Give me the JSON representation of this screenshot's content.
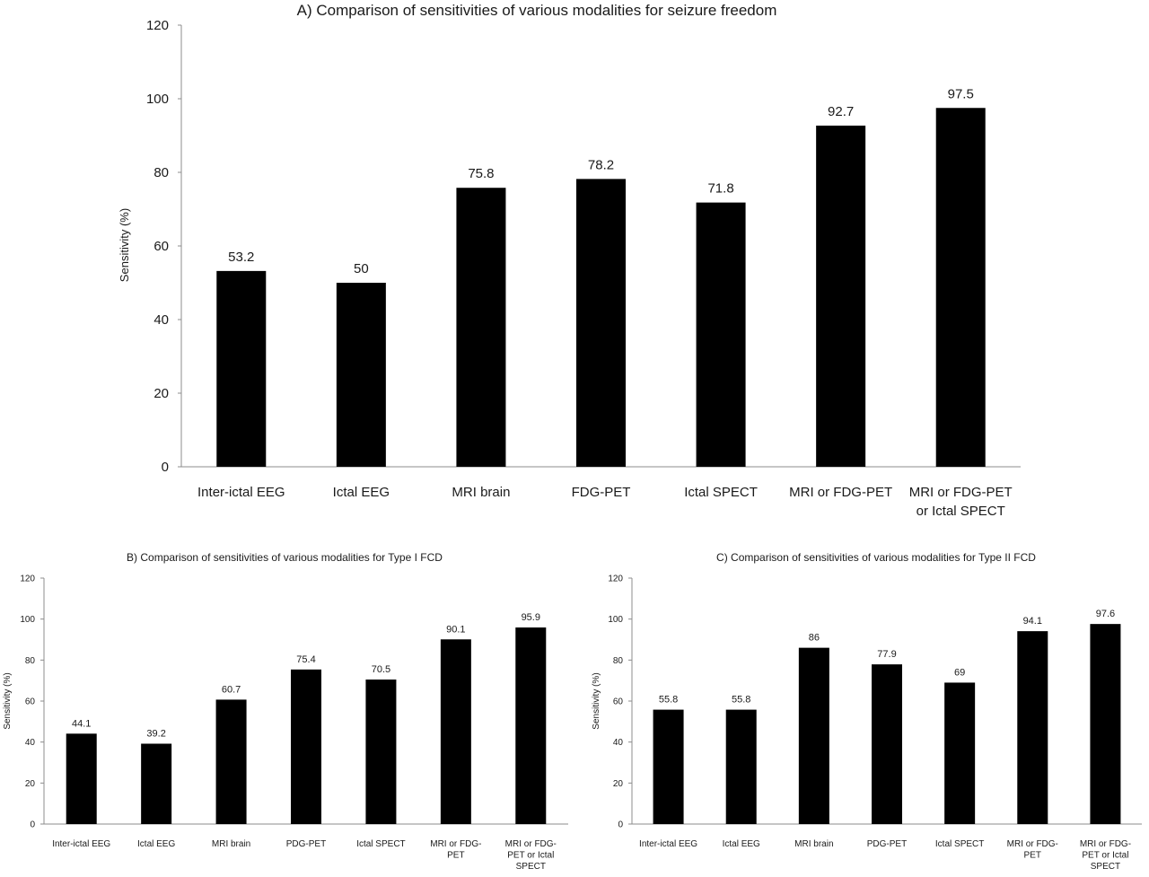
{
  "chart_data": [
    {
      "id": "A",
      "type": "bar",
      "title": "A) Comparison of sensitivities of various modalities for  seizure freedom",
      "xlabel": "",
      "ylabel": "Sensitivity (%)",
      "ylim": [
        0,
        120
      ],
      "yticks": [
        0,
        20,
        40,
        60,
        80,
        100,
        120
      ],
      "grid": false,
      "categories": [
        [
          "Inter-ictal EEG"
        ],
        [
          "Ictal EEG"
        ],
        [
          "MRI brain"
        ],
        [
          "FDG-PET"
        ],
        [
          "Ictal SPECT"
        ],
        [
          "MRI or FDG-PET"
        ],
        [
          "MRI or FDG-PET",
          "or Ictal SPECT"
        ]
      ],
      "values": [
        53.2,
        50,
        75.8,
        78.2,
        71.8,
        92.7,
        97.5
      ],
      "labels": [
        "53.2",
        "50",
        "75.8",
        "78.2",
        "71.8",
        "92.7",
        "97.5"
      ]
    },
    {
      "id": "B",
      "type": "bar",
      "title": "B) Comparison of sensitivities  of various modalities for  Type I FCD",
      "xlabel": "",
      "ylabel": "Sensitivity (%)",
      "ylim": [
        0,
        120
      ],
      "yticks": [
        0,
        20,
        40,
        60,
        80,
        100,
        120
      ],
      "grid": false,
      "categories": [
        [
          "Inter-ictal EEG"
        ],
        [
          "Ictal EEG"
        ],
        [
          "MRI brain"
        ],
        [
          "PDG-PET"
        ],
        [
          "Ictal SPECT"
        ],
        [
          "MRI or FDG-",
          "PET"
        ],
        [
          "MRI or FDG-",
          "PET or Ictal",
          "SPECT"
        ]
      ],
      "values": [
        44.1,
        39.2,
        60.7,
        75.4,
        70.5,
        90.1,
        95.9
      ],
      "labels": [
        "44.1",
        "39.2",
        "60.7",
        "75.4",
        "70.5",
        "90.1",
        "95.9"
      ]
    },
    {
      "id": "C",
      "type": "bar",
      "title": "C) Comparison of sensitivities  of various modalities for  Type II FCD",
      "xlabel": "",
      "ylabel": "Sensitivity (%)",
      "ylim": [
        0,
        120
      ],
      "yticks": [
        0,
        20,
        40,
        60,
        80,
        100,
        120
      ],
      "grid": false,
      "categories": [
        [
          "Inter-ictal EEG"
        ],
        [
          "Ictal EEG"
        ],
        [
          "MRI brain"
        ],
        [
          "PDG-PET"
        ],
        [
          "Ictal SPECT"
        ],
        [
          "MRI or FDG-",
          "PET"
        ],
        [
          "MRI or FDG-",
          "PET or Ictal",
          "SPECT"
        ]
      ],
      "values": [
        55.8,
        55.8,
        86,
        77.9,
        69,
        94.1,
        97.6
      ],
      "labels": [
        "55.8",
        "55.8",
        "86",
        "77.9",
        "69",
        "94.1",
        "97.6"
      ]
    }
  ],
  "colors": {
    "bar": "#000000",
    "axis": "#8c8c8c",
    "text": "#1a1a1a",
    "background": "#ffffff"
  }
}
